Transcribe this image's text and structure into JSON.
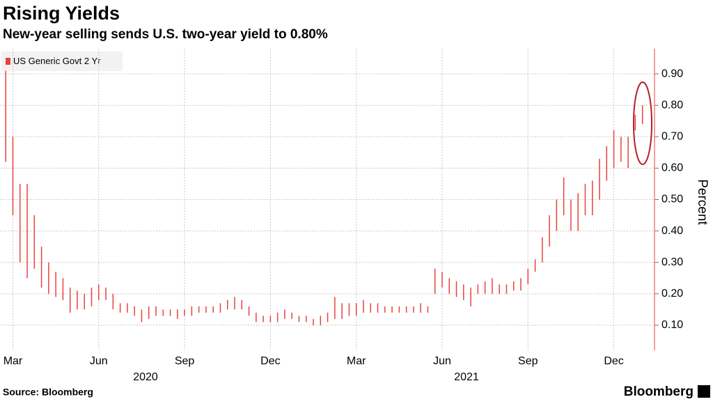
{
  "chart_data": {
    "type": "range-bar",
    "title": "Rising Yields",
    "subtitle": "New-year selling sends U.S. two-year yield to 0.80%",
    "y_label": "Percent",
    "source": "Source: Bloomberg",
    "brand": "Bloomberg",
    "x_group_labels": [
      "2020",
      "2021"
    ],
    "xlim": [
      1.55,
      24.3
    ],
    "xticks": [
      {
        "value": 2,
        "label": "Mar"
      },
      {
        "value": 5,
        "label": "Jun"
      },
      {
        "value": 8,
        "label": "Sep"
      },
      {
        "value": 11,
        "label": "Dec"
      },
      {
        "value": 14,
        "label": "Mar"
      },
      {
        "value": 17,
        "label": "Jun"
      },
      {
        "value": 20,
        "label": "Sep"
      },
      {
        "value": 23,
        "label": "Dec"
      }
    ],
    "ylim": [
      0.02,
      0.98
    ],
    "yticks": [
      {
        "value": 0.1,
        "label": "0.10"
      },
      {
        "value": 0.2,
        "label": "0.20"
      },
      {
        "value": 0.3,
        "label": "0.30"
      },
      {
        "value": 0.4,
        "label": "0.40"
      },
      {
        "value": 0.5,
        "label": "0.50"
      },
      {
        "value": 0.6,
        "label": "0.60"
      },
      {
        "value": 0.7,
        "label": "0.70"
      },
      {
        "value": 0.8,
        "label": "0.80"
      },
      {
        "value": 0.9,
        "label": "0.90"
      }
    ],
    "grid": true,
    "x": [
      1.75,
      2,
      2.25,
      2.5,
      2.75,
      3,
      3.25,
      3.5,
      3.75,
      4,
      4.25,
      4.5,
      4.75,
      5,
      5.25,
      5.5,
      5.75,
      6,
      6.25,
      6.5,
      6.75,
      7,
      7.25,
      7.5,
      7.75,
      8,
      8.25,
      8.5,
      8.75,
      9,
      9.25,
      9.5,
      9.75,
      10,
      10.25,
      10.5,
      10.75,
      11,
      11.25,
      11.5,
      11.75,
      12,
      12.25,
      12.5,
      12.75,
      13,
      13.25,
      13.5,
      13.75,
      14,
      14.25,
      14.5,
      14.75,
      15,
      15.25,
      15.5,
      15.75,
      16,
      16.25,
      16.5,
      16.75,
      17,
      17.25,
      17.5,
      17.75,
      18,
      18.25,
      18.5,
      18.75,
      19,
      19.25,
      19.5,
      19.75,
      20,
      20.25,
      20.5,
      20.75,
      21,
      21.25,
      21.5,
      21.75,
      22,
      22.25,
      22.5,
      22.75,
      23,
      23.25,
      23.5,
      23.75,
      24
    ],
    "series": [
      {
        "name": "US Generic Govt 2 Yr",
        "color": "#e8413c",
        "high": [
          0.91,
          0.7,
          0.55,
          0.55,
          0.45,
          0.35,
          0.3,
          0.27,
          0.25,
          0.22,
          0.21,
          0.2,
          0.22,
          0.23,
          0.22,
          0.2,
          0.17,
          0.17,
          0.16,
          0.15,
          0.16,
          0.16,
          0.15,
          0.15,
          0.15,
          0.15,
          0.16,
          0.16,
          0.16,
          0.16,
          0.17,
          0.18,
          0.19,
          0.18,
          0.16,
          0.14,
          0.13,
          0.13,
          0.14,
          0.15,
          0.14,
          0.13,
          0.13,
          0.12,
          0.13,
          0.14,
          0.19,
          0.17,
          0.17,
          0.17,
          0.18,
          0.17,
          0.17,
          0.16,
          0.16,
          0.16,
          0.16,
          0.16,
          0.17,
          0.16,
          0.28,
          0.27,
          0.25,
          0.24,
          0.23,
          0.22,
          0.23,
          0.24,
          0.25,
          0.23,
          0.23,
          0.24,
          0.25,
          0.28,
          0.31,
          0.38,
          0.45,
          0.5,
          0.57,
          0.5,
          0.52,
          0.55,
          0.56,
          0.63,
          0.67,
          0.72,
          0.7,
          0.7,
          0.77,
          0.8
        ],
        "low": [
          0.62,
          0.45,
          0.3,
          0.25,
          0.28,
          0.22,
          0.2,
          0.19,
          0.18,
          0.14,
          0.15,
          0.15,
          0.16,
          0.18,
          0.18,
          0.15,
          0.14,
          0.14,
          0.13,
          0.11,
          0.12,
          0.13,
          0.13,
          0.13,
          0.12,
          0.13,
          0.13,
          0.14,
          0.14,
          0.14,
          0.14,
          0.15,
          0.15,
          0.15,
          0.13,
          0.11,
          0.11,
          0.11,
          0.11,
          0.12,
          0.12,
          0.11,
          0.11,
          0.1,
          0.1,
          0.11,
          0.12,
          0.12,
          0.13,
          0.13,
          0.14,
          0.14,
          0.14,
          0.14,
          0.14,
          0.14,
          0.14,
          0.14,
          0.14,
          0.14,
          0.2,
          0.22,
          0.2,
          0.19,
          0.18,
          0.16,
          0.2,
          0.2,
          0.2,
          0.2,
          0.2,
          0.21,
          0.21,
          0.23,
          0.27,
          0.3,
          0.35,
          0.4,
          0.45,
          0.4,
          0.4,
          0.45,
          0.45,
          0.5,
          0.56,
          0.6,
          0.62,
          0.6,
          0.72,
          0.74
        ]
      }
    ]
  }
}
